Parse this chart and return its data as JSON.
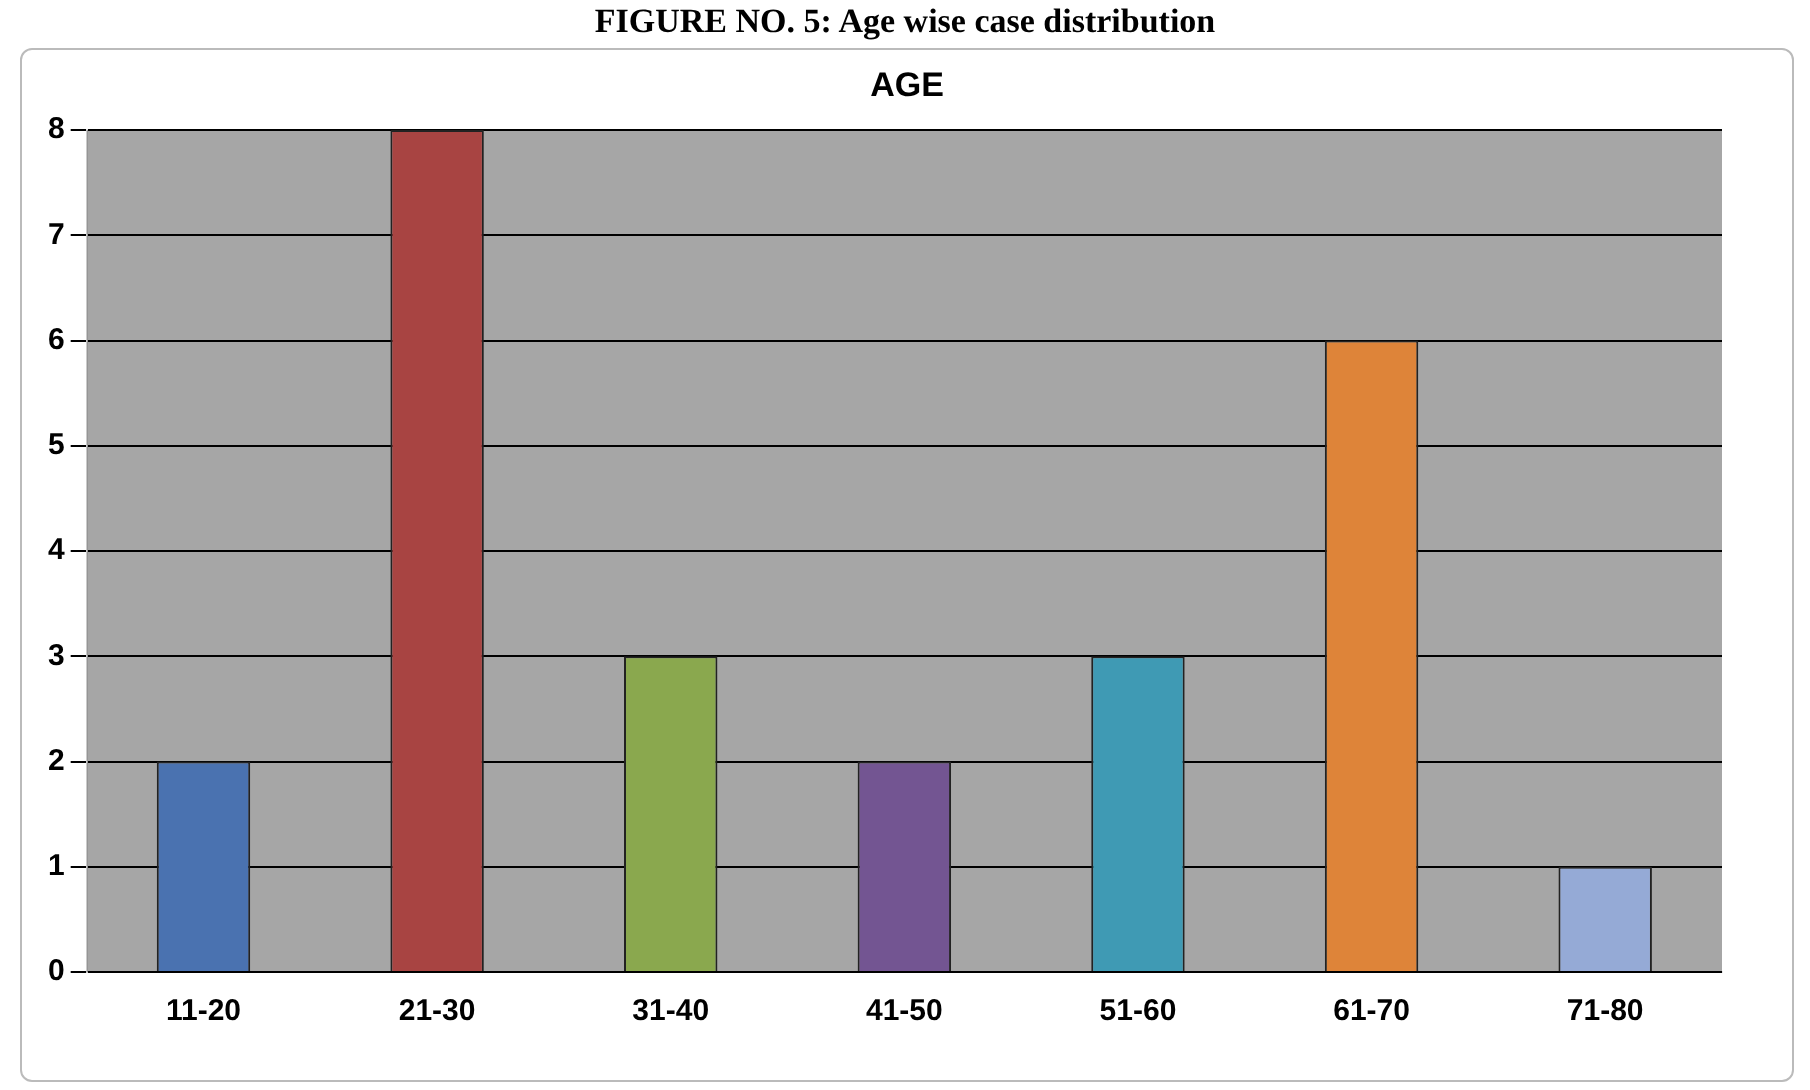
{
  "chart_data": {
    "type": "bar",
    "title": "FIGURE NO. 5: Age wise case distribution",
    "subtitle": "AGE",
    "categories": [
      "11-20",
      "21-30",
      "31-40",
      "41-50",
      "51-60",
      "61-70",
      "71-80"
    ],
    "values": [
      2,
      8,
      3,
      2,
      3,
      6,
      1
    ],
    "colors": [
      "#4a72b0",
      "#a84442",
      "#8aa84e",
      "#735592",
      "#3f9ab4",
      "#de8439",
      "#95aad6"
    ],
    "ylim": [
      0,
      8
    ],
    "yticks": [
      0,
      1,
      2,
      3,
      4,
      5,
      6,
      7,
      8
    ],
    "grid": "y",
    "legend": false
  }
}
